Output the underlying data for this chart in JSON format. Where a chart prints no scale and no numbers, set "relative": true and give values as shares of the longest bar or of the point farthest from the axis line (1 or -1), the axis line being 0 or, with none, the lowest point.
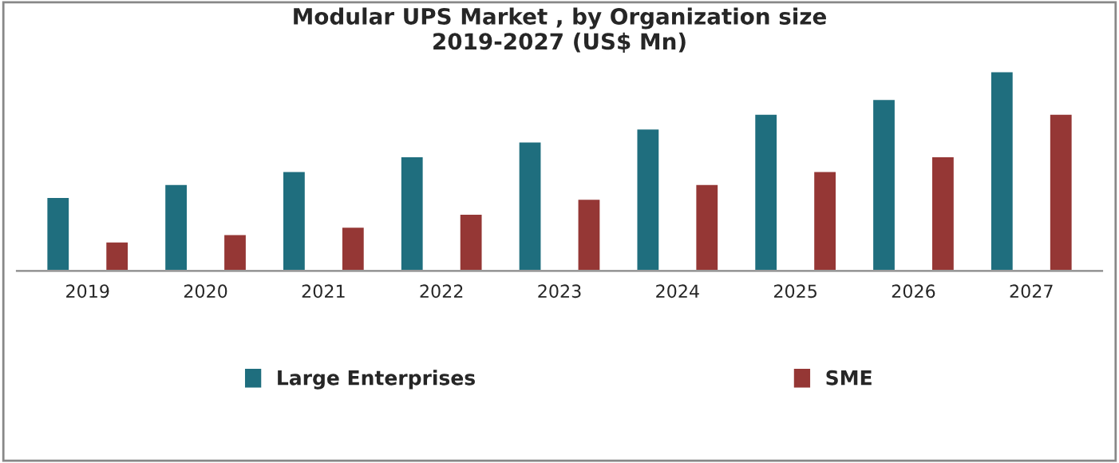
{
  "chart_data": {
    "type": "bar",
    "title": "Modular UPS Market , by Organization size\n2019-2027 (US$ Mn)",
    "relative": true,
    "categories": [
      "2019",
      "2020",
      "2021",
      "2022",
      "2023",
      "2024",
      "2025",
      "2026",
      "2027"
    ],
    "series": [
      {
        "name": "Large Enterprises",
        "color": "#1f6e7e",
        "values": [
          0.37,
          0.435,
          0.5,
          0.574,
          0.648,
          0.713,
          0.787,
          0.861,
          1
        ]
      },
      {
        "name": "SME",
        "color": "#953735",
        "values": [
          0.148,
          0.185,
          0.222,
          0.287,
          0.361,
          0.435,
          0.5,
          0.574,
          0.787
        ]
      }
    ],
    "legend": "bottom",
    "grid": false
  }
}
